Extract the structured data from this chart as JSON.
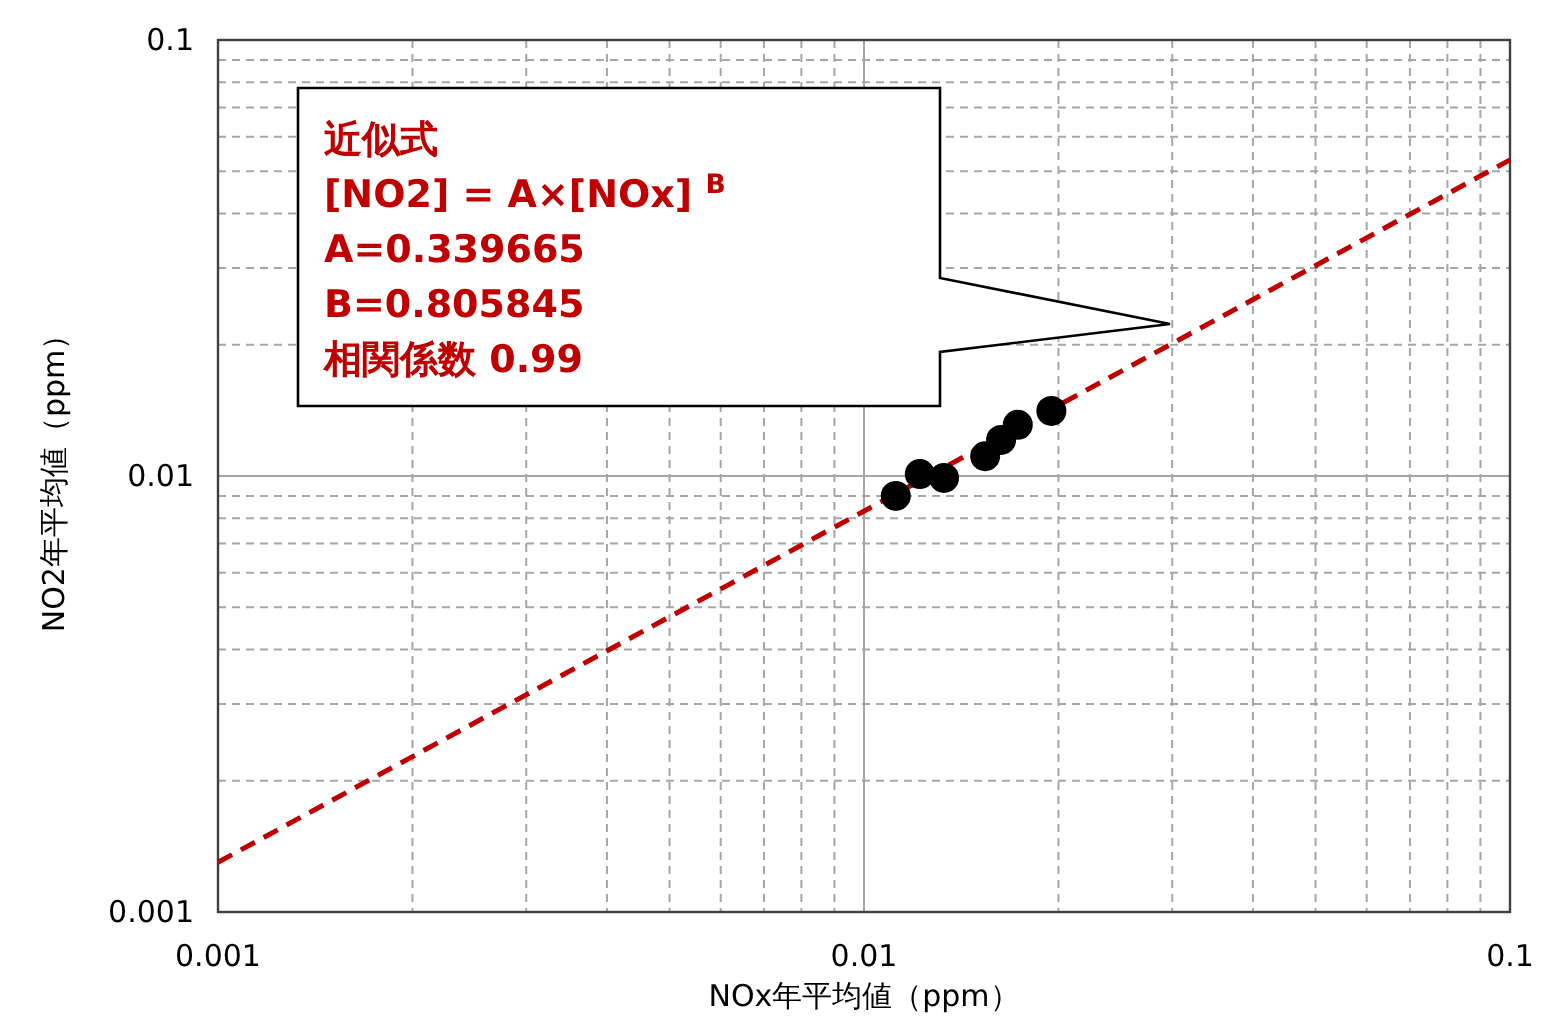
{
  "chart_data": {
    "type": "scatter",
    "xlabel": "NOx年平均値（ppm）",
    "ylabel": "NO2年平均値（ppm）",
    "log": "xy",
    "grid": true,
    "xlim": [
      0.001,
      0.1
    ],
    "ylim": [
      0.001,
      0.1
    ],
    "xticks": [
      0.001,
      0.01,
      0.1
    ],
    "yticks": [
      0.001,
      0.01,
      0.1
    ],
    "annotations": [
      "近似式",
      "[NO2] = A×[NOx] $^{B}$",
      "A=0.339665",
      "B=0.805845",
      "相関係数  0.99"
    ],
    "series": [
      {
        "type": "line",
        "color": "#c00000",
        "line_style": "dashed",
        "marker": "none",
        "x": [
          0.001,
          0.1
        ],
        "values": [
          0.0013,
          0.0531
        ]
      },
      {
        "type": "scatter",
        "color": "#000000",
        "marker": "circle",
        "x": [
          0.0112,
          0.0122,
          0.0133,
          0.0154,
          0.0163,
          0.0173,
          0.0195
        ],
        "values": [
          0.009,
          0.0101,
          0.0099,
          0.0111,
          0.0121,
          0.0131,
          0.0141
        ]
      }
    ]
  }
}
